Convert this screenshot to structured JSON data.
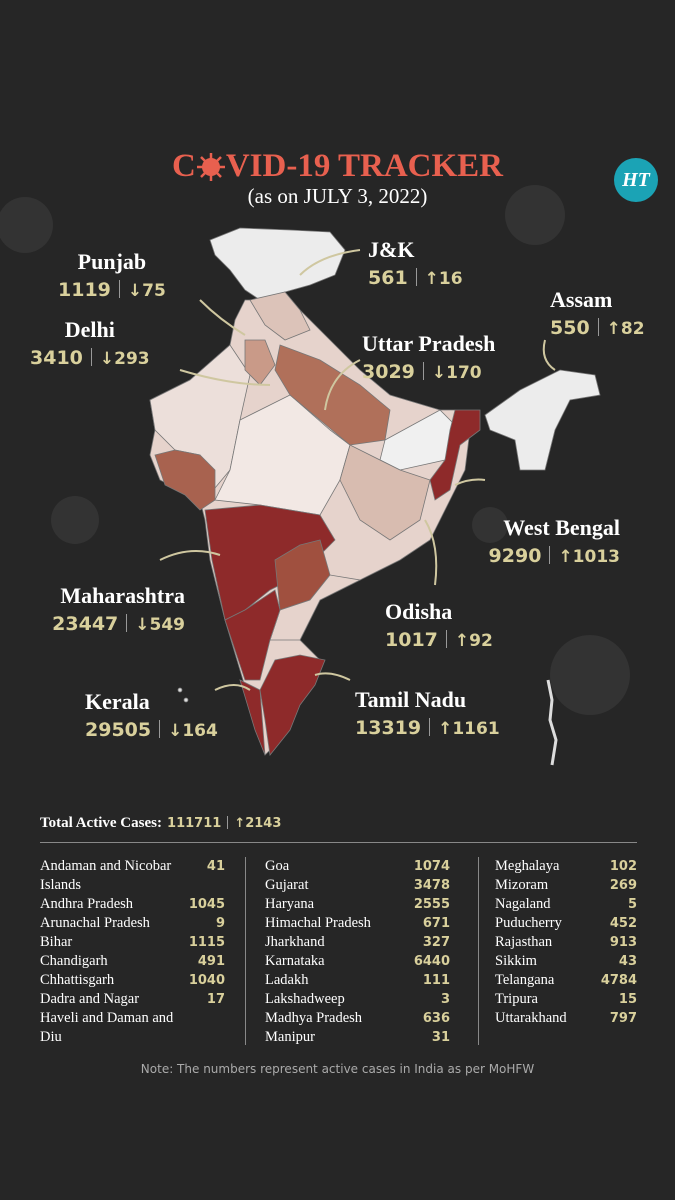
{
  "header": {
    "title_parts": [
      "C",
      "VID-19 TRACKER"
    ],
    "subtitle": "(as on JULY 3, 2022)",
    "logo": "HT"
  },
  "callouts": [
    {
      "name": "Punjab",
      "cases": 1119,
      "change": "↓75"
    },
    {
      "name": "J&K",
      "cases": 561,
      "change": "↑16"
    },
    {
      "name": "Assam",
      "cases": 550,
      "change": "↑82"
    },
    {
      "name": "Delhi",
      "cases": 3410,
      "change": "↓293"
    },
    {
      "name": "Uttar Pradesh",
      "cases": 3029,
      "change": "↓170"
    },
    {
      "name": "West Bengal",
      "cases": 9290,
      "change": "↑1013"
    },
    {
      "name": "Maharashtra",
      "cases": 23447,
      "change": "↓549"
    },
    {
      "name": "Odisha",
      "cases": 1017,
      "change": "↑92"
    },
    {
      "name": "Kerala",
      "cases": 29505,
      "change": "↓164"
    },
    {
      "name": "Tamil Nadu",
      "cases": 13319,
      "change": "↑1161"
    }
  ],
  "total": {
    "label": "Total Active Cases:",
    "cases": 111711,
    "change": "↑2143"
  },
  "table": {
    "columns": [
      [
        [
          "Andaman and Nicobar Islands",
          41
        ],
        [
          "Andhra Pradesh",
          1045
        ],
        [
          "Arunachal Pradesh",
          9
        ],
        [
          "Bihar",
          1115
        ],
        [
          "Chandigarh",
          491
        ],
        [
          "Chhattisgarh",
          1040
        ],
        [
          "Dadra and Nagar Haveli and Daman and Diu",
          17
        ]
      ],
      [
        [
          "Goa",
          1074
        ],
        [
          "Gujarat",
          3478
        ],
        [
          "Haryana",
          2555
        ],
        [
          "Himachal Pradesh",
          671
        ],
        [
          "Jharkhand",
          327
        ],
        [
          "Karnataka",
          6440
        ],
        [
          "Ladakh",
          111
        ],
        [
          "Lakshadweep",
          3
        ],
        [
          "Madhya Pradesh",
          636
        ],
        [
          "Manipur",
          31
        ]
      ],
      [
        [
          "Meghalaya",
          102
        ],
        [
          "Mizoram",
          269
        ],
        [
          "Nagaland",
          5
        ],
        [
          "Puducherry",
          452
        ],
        [
          "Rajasthan",
          913
        ],
        [
          "Sikkim",
          43
        ],
        [
          "Telangana",
          4784
        ],
        [
          "Tripura",
          15
        ],
        [
          "Uttarakhand",
          797
        ]
      ]
    ]
  },
  "note": "Note: The numbers represent active cases in India as per MoHFW"
}
